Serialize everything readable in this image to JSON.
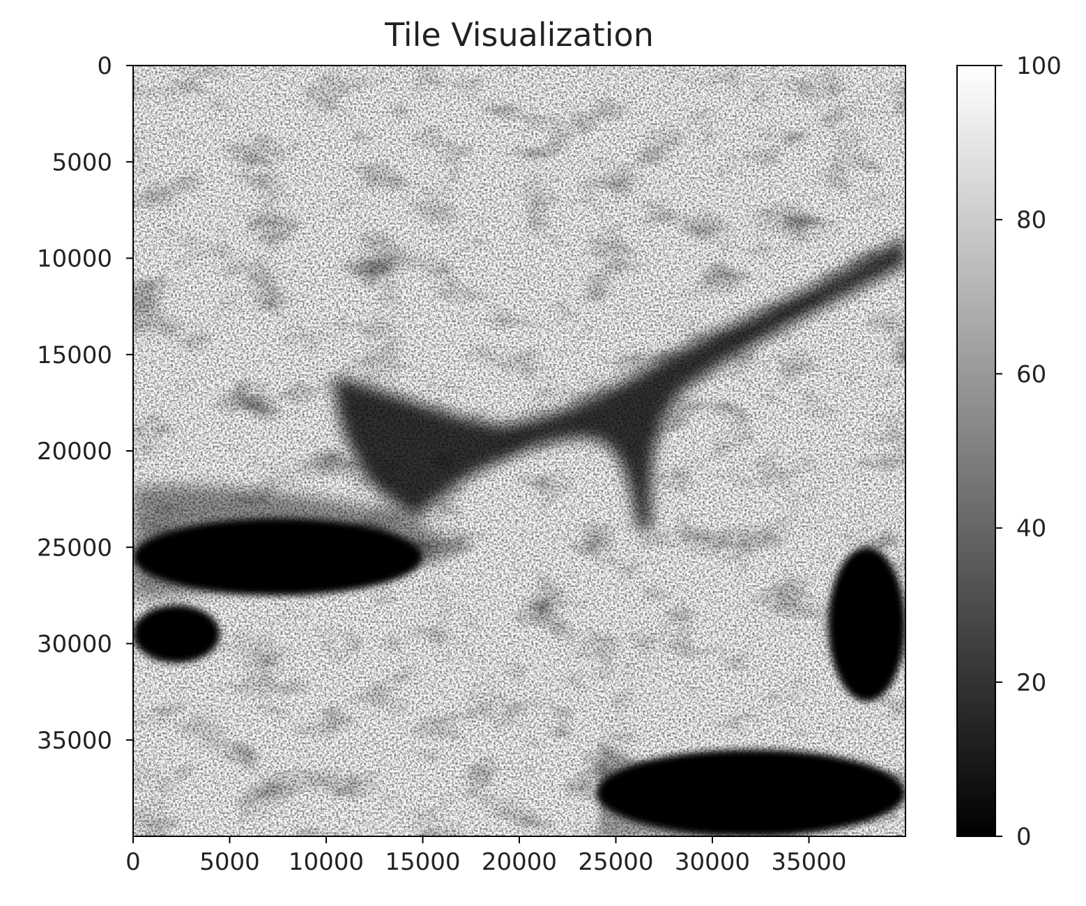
{
  "chart_data": {
    "type": "heatmap",
    "title": "Tile Visualization",
    "xlabel": "",
    "ylabel": "",
    "xlim": [
      0,
      40000
    ],
    "ylim": [
      40000,
      0
    ],
    "y_inverted": true,
    "x_ticks": [
      0,
      5000,
      10000,
      15000,
      20000,
      25000,
      30000,
      35000
    ],
    "y_ticks": [
      0,
      5000,
      10000,
      15000,
      20000,
      25000,
      30000,
      35000
    ],
    "colormap": "gray",
    "colorbar": {
      "min": 0,
      "max": 100,
      "ticks": [
        0,
        20,
        40,
        60,
        80,
        100
      ],
      "low_color": "#000000",
      "high_color": "#ffffff"
    },
    "dark_regions": [
      {
        "x0": 0,
        "x1": 15000,
        "y0": 23500,
        "y1": 27500
      },
      {
        "x0": 0,
        "x1": 4500,
        "y0": 28000,
        "y1": 31000
      },
      {
        "x0": 24000,
        "x1": 40000,
        "y0": 35500,
        "y1": 40000
      },
      {
        "x0": 36000,
        "x1": 40000,
        "y0": 25000,
        "y1": 33000
      }
    ],
    "grid": false
  }
}
